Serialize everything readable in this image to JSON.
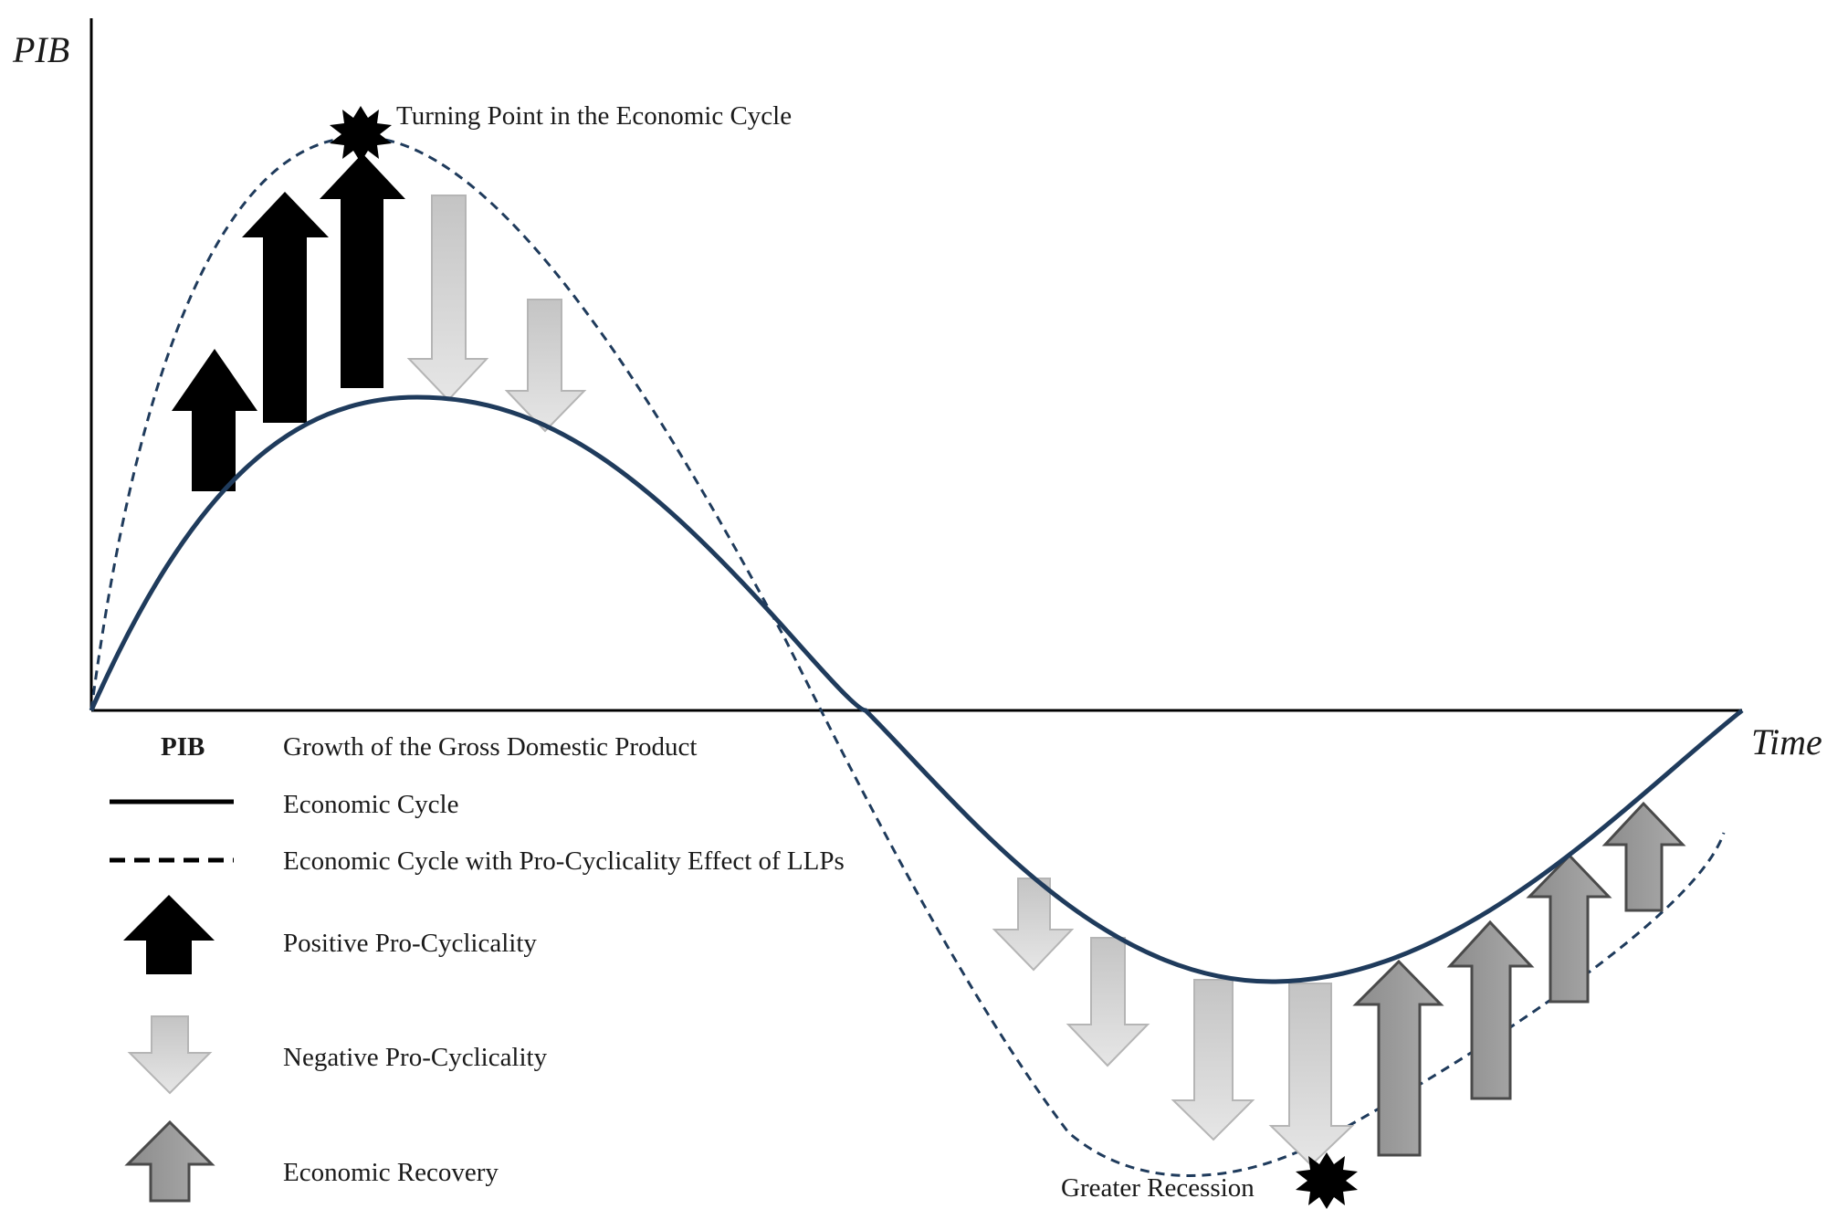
{
  "axes": {
    "y_label": "PIB",
    "x_label": "Time"
  },
  "annotations": {
    "turning_point": "Turning Point in the Economic Cycle",
    "greater_recession": "Greater Recession"
  },
  "legend": {
    "pib_key": "PIB",
    "pib_desc": "Growth of the Gross Domestic Product",
    "economic_cycle": "Economic Cycle",
    "economic_cycle_llp": "Economic Cycle with Pro-Cyclicality Effect of LLPs",
    "positive_pro_cyclicality": "Positive Pro-Cyclicality",
    "negative_pro_cyclicality": "Negative Pro-Cyclicality",
    "economic_recovery": "Economic Recovery"
  },
  "colors": {
    "curve": "#1f3b5c",
    "axis": "#000000",
    "positive_arrow": "#000000",
    "negative_arrow": "#cdcdcd",
    "recovery_arrow": "#9a9a9a"
  }
}
